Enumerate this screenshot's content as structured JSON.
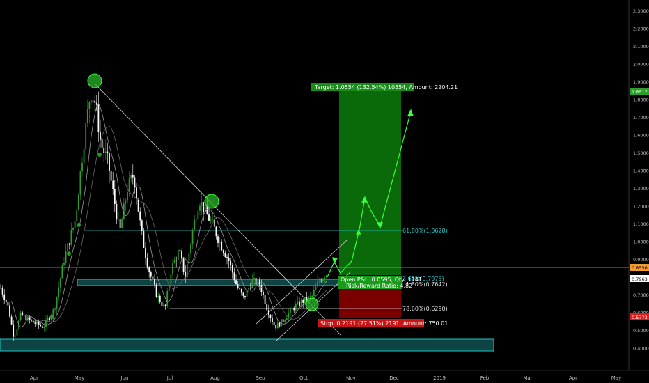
{
  "chart_data": {
    "type": "candlestick",
    "y_axis": {
      "ticks": [
        "2.3000",
        "2.2000",
        "2.1000",
        "2.0000",
        "1.9000",
        "1.8000",
        "1.7000",
        "1.6000",
        "1.5000",
        "1.4000",
        "1.3000",
        "1.2000",
        "1.1000",
        "1.0000",
        "0.9000",
        "0.8000",
        "0.7000",
        "0.6000",
        "0.5000",
        "0.4000"
      ],
      "ylim": [
        0.35,
        2.35
      ]
    },
    "x_axis": {
      "ticks": [
        "Apr",
        "May",
        "Jun",
        "Jul",
        "Aug",
        "Sep",
        "Oct",
        "Nov",
        "Dec",
        "2019",
        "Feb",
        "Mar",
        "Apr",
        "May"
      ]
    },
    "price_tags": {
      "target": "1.8517",
      "last": "0.8556",
      "current": "0.7963",
      "stop": "0.5772"
    },
    "fib_levels": [
      {
        "label": "61.80%(1.0628)",
        "value": 1.0628
      },
      {
        "label": "3.60%(0.7975)",
        "value": 0.7975
      },
      {
        "label": "1.80%(0.7642)",
        "value": 0.7642
      },
      {
        "label": "78.60%(0.6290)",
        "value": 0.629
      }
    ],
    "position": {
      "target_label": "Target: 1.0554 (132.54%) 10554, Amount: 2204.21",
      "stop_label": "Stop: 0.2191 (27.51%) 2191, Amount: 750.01",
      "open_pl": "Open P&L: 0.0595, Qty: 1141",
      "risk_reward": "Risk/Reward Ratio: 4.82",
      "entry": 0.7963,
      "target": 1.8517,
      "stop": 0.5772
    },
    "support_zones": [
      {
        "low": 0.38,
        "high": 0.455
      },
      {
        "low": 0.764,
        "high": 0.7975
      }
    ],
    "colors": {
      "up": "#2e9c2e",
      "down": "#ffffff",
      "fib": "#22c4c4",
      "target_zone": "#0a6a0a",
      "stop_zone": "#8b0000",
      "arrow": "#3cff3c",
      "circle": "#22b022",
      "orange_line": "#f29a2e"
    }
  }
}
